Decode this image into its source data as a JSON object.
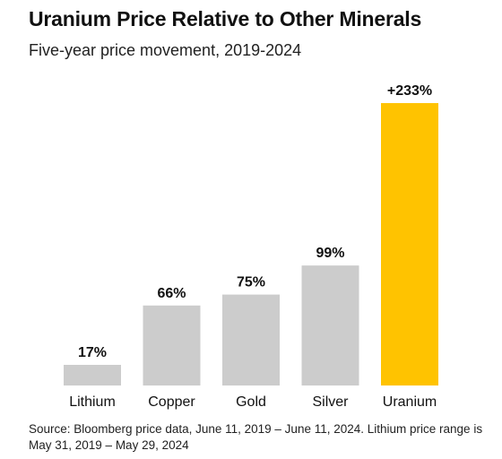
{
  "title": "Uranium Price Relative to Other Minerals",
  "subtitle": "Five-year price movement, 2019-2024",
  "source": "Source: Bloomberg price data, June 11, 2019 – June 11, 2024. Lithium price range is May 31, 2019 – May 29, 2024",
  "colors": {
    "default_bar": "#cccccc",
    "highlight_bar": "#ffc300",
    "text": "#111111"
  },
  "chart_data": {
    "type": "bar",
    "title": "Uranium Price Relative to Other Minerals",
    "subtitle": "Five-year price movement, 2019-2024",
    "categories": [
      "Lithium",
      "Copper",
      "Gold",
      "Silver",
      "Uranium"
    ],
    "values": [
      17,
      66,
      75,
      99,
      233
    ],
    "value_labels": [
      "17%",
      "66%",
      "75%",
      "99%",
      "+233%"
    ],
    "highlight": "Uranium",
    "unit": "%",
    "ylim": [
      0,
      233
    ],
    "grid": false,
    "legend": "none"
  }
}
